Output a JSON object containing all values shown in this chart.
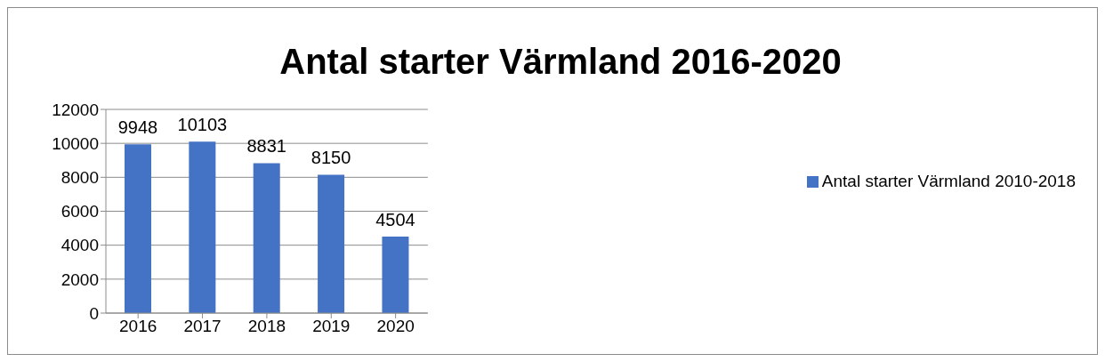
{
  "chart_data": {
    "type": "bar",
    "title": "Antal starter Värmland 2016-2020",
    "categories": [
      "2016",
      "2017",
      "2018",
      "2019",
      "2020"
    ],
    "series": [
      {
        "name": "Antal starter Värmland 2010-2018",
        "color": "#4472c4",
        "values": [
          9948,
          10103,
          8831,
          8150,
          4504
        ]
      }
    ],
    "ylim": [
      0,
      12000
    ],
    "yticks": [
      0,
      2000,
      4000,
      6000,
      8000,
      10000,
      12000
    ],
    "grid": "y",
    "legend": "right",
    "data_labels": true
  }
}
